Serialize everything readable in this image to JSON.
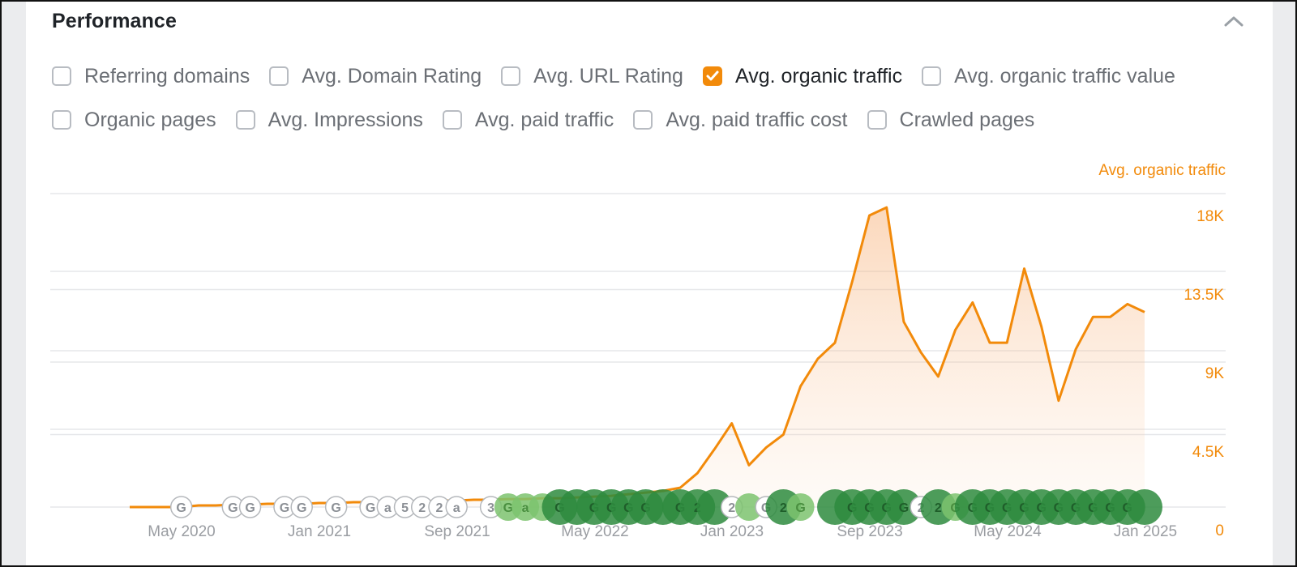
{
  "header": {
    "title": "Performance",
    "collapse_icon": "chevron-up-icon"
  },
  "metrics_row1": [
    {
      "label": "Referring domains",
      "checked": false
    },
    {
      "label": "Avg. Domain Rating",
      "checked": false
    },
    {
      "label": "Avg. URL Rating",
      "checked": false
    },
    {
      "label": "Avg. organic traffic",
      "checked": true
    },
    {
      "label": "Avg. organic traffic value",
      "checked": false
    }
  ],
  "metrics_row2": [
    {
      "label": "Organic pages",
      "checked": false
    },
    {
      "label": "Avg. Impressions",
      "checked": false
    },
    {
      "label": "Avg. paid traffic",
      "checked": false
    },
    {
      "label": "Avg. paid traffic cost",
      "checked": false
    },
    {
      "label": "Crawled pages",
      "checked": false
    }
  ],
  "colors": {
    "accent": "#f28a0a",
    "marker_dark": "#2e8b3e",
    "marker_light": "#7cc36e"
  },
  "chart_data": {
    "type": "area",
    "series": [
      {
        "name": "Avg. organic traffic",
        "x": [
          "2020-02",
          "2020-03",
          "2020-04",
          "2020-05",
          "2020-06",
          "2020-07",
          "2020-08",
          "2020-09",
          "2020-10",
          "2020-11",
          "2020-12",
          "2021-01",
          "2021-02",
          "2021-03",
          "2021-04",
          "2021-05",
          "2021-06",
          "2021-07",
          "2021-08",
          "2021-09",
          "2021-10",
          "2021-11",
          "2021-12",
          "2022-01",
          "2022-02",
          "2022-03",
          "2022-04",
          "2022-05",
          "2022-06",
          "2022-07",
          "2022-08",
          "2022-09",
          "2022-10",
          "2022-11",
          "2022-12",
          "2023-01",
          "2023-02",
          "2023-03",
          "2023-04",
          "2023-05",
          "2023-06",
          "2023-07",
          "2023-08",
          "2023-09",
          "2023-10",
          "2023-11",
          "2023-12",
          "2024-01",
          "2024-02",
          "2024-03",
          "2024-04",
          "2024-05",
          "2024-06",
          "2024-07",
          "2024-08",
          "2024-09",
          "2024-10",
          "2024-11",
          "2024-12",
          "2025-01"
        ],
        "values": [
          0,
          0,
          0,
          0,
          100,
          100,
          150,
          150,
          200,
          200,
          200,
          250,
          250,
          300,
          300,
          350,
          350,
          350,
          400,
          400,
          450,
          450,
          500,
          500,
          550,
          550,
          600,
          650,
          700,
          800,
          900,
          1000,
          1200,
          2100,
          3600,
          5200,
          2600,
          3700,
          4500,
          7500,
          9200,
          10200,
          14000,
          18100,
          18600,
          11500,
          9600,
          8100,
          11000,
          12700,
          10200,
          10200,
          14800,
          11200,
          6600,
          9800,
          11800,
          11800,
          12600,
          12100
        ]
      }
    ],
    "y_axis": {
      "title": "Avg. organic traffic",
      "ticks": [
        "0",
        "4.5K",
        "9K",
        "13.5K",
        "18K"
      ],
      "ylim": [
        0,
        19000
      ],
      "position": "right"
    },
    "x_axis": {
      "ticks": [
        "May 2020",
        "Jan 2021",
        "Sep 2021",
        "May 2022",
        "Jan 2023",
        "Sep 2023",
        "May 2024",
        "Jan 2025"
      ]
    },
    "grid": true,
    "markers": [
      {
        "x": "2020-05",
        "text": "G",
        "style": "outline"
      },
      {
        "x": "2020-08",
        "text": "G",
        "style": "outline"
      },
      {
        "x": "2020-09",
        "text": "G",
        "style": "outline"
      },
      {
        "x": "2020-11",
        "text": "G",
        "style": "outline"
      },
      {
        "x": "2020-12",
        "text": "G",
        "style": "outline"
      },
      {
        "x": "2021-02",
        "text": "G",
        "style": "outline"
      },
      {
        "x": "2021-04",
        "text": "G",
        "style": "outline"
      },
      {
        "x": "2021-05",
        "text": "a",
        "style": "outline"
      },
      {
        "x": "2021-06",
        "text": "5",
        "style": "outline"
      },
      {
        "x": "2021-07",
        "text": "2",
        "style": "outline"
      },
      {
        "x": "2021-08",
        "text": "2",
        "style": "outline"
      },
      {
        "x": "2021-09",
        "text": "a",
        "style": "outline"
      },
      {
        "x": "2021-11",
        "text": "3",
        "style": "outline"
      },
      {
        "x": "2021-12",
        "text": "G",
        "style": "light"
      },
      {
        "x": "2022-01",
        "text": "a",
        "style": "light"
      },
      {
        "x": "2022-02",
        "text": "",
        "style": "light"
      },
      {
        "x": "2022-03",
        "text": "G",
        "style": "dark"
      },
      {
        "x": "2022-04",
        "text": "",
        "style": "dark"
      },
      {
        "x": "2022-05",
        "text": "G",
        "style": "dark"
      },
      {
        "x": "2022-06",
        "text": "G",
        "style": "dark"
      },
      {
        "x": "2022-07",
        "text": "G",
        "style": "dark"
      },
      {
        "x": "2022-08",
        "text": "G",
        "style": "dark"
      },
      {
        "x": "2022-09",
        "text": "",
        "style": "dark"
      },
      {
        "x": "2022-10",
        "text": "G",
        "style": "dark"
      },
      {
        "x": "2022-11",
        "text": "2",
        "style": "dark"
      },
      {
        "x": "2022-12",
        "text": "",
        "style": "dark"
      },
      {
        "x": "2023-01",
        "text": "2",
        "style": "outline"
      },
      {
        "x": "2023-02",
        "text": "",
        "style": "light"
      },
      {
        "x": "2023-03",
        "text": "G",
        "style": "outline"
      },
      {
        "x": "2023-04",
        "text": "2",
        "style": "dark"
      },
      {
        "x": "2023-05",
        "text": "G",
        "style": "light"
      },
      {
        "x": "2023-07",
        "text": "",
        "style": "dark"
      },
      {
        "x": "2023-08",
        "text": "G",
        "style": "dark"
      },
      {
        "x": "2023-09",
        "text": "G",
        "style": "dark"
      },
      {
        "x": "2023-10",
        "text": "G",
        "style": "dark"
      },
      {
        "x": "2023-11",
        "text": "G",
        "style": "dark"
      },
      {
        "x": "2023-12",
        "text": "2",
        "style": "outline"
      },
      {
        "x": "2024-01",
        "text": "2",
        "style": "dark"
      },
      {
        "x": "2024-02",
        "text": "G",
        "style": "light"
      },
      {
        "x": "2024-03",
        "text": "G",
        "style": "dark"
      },
      {
        "x": "2024-04",
        "text": "G",
        "style": "dark"
      },
      {
        "x": "2024-05",
        "text": "G",
        "style": "dark"
      },
      {
        "x": "2024-06",
        "text": "G",
        "style": "dark"
      },
      {
        "x": "2024-07",
        "text": "G",
        "style": "dark"
      },
      {
        "x": "2024-08",
        "text": "G",
        "style": "dark"
      },
      {
        "x": "2024-09",
        "text": "G",
        "style": "dark"
      },
      {
        "x": "2024-10",
        "text": "G",
        "style": "dark"
      },
      {
        "x": "2024-11",
        "text": "G",
        "style": "dark"
      },
      {
        "x": "2024-12",
        "text": "G",
        "style": "dark"
      },
      {
        "x": "2025-01",
        "text": "",
        "style": "dark"
      }
    ]
  }
}
